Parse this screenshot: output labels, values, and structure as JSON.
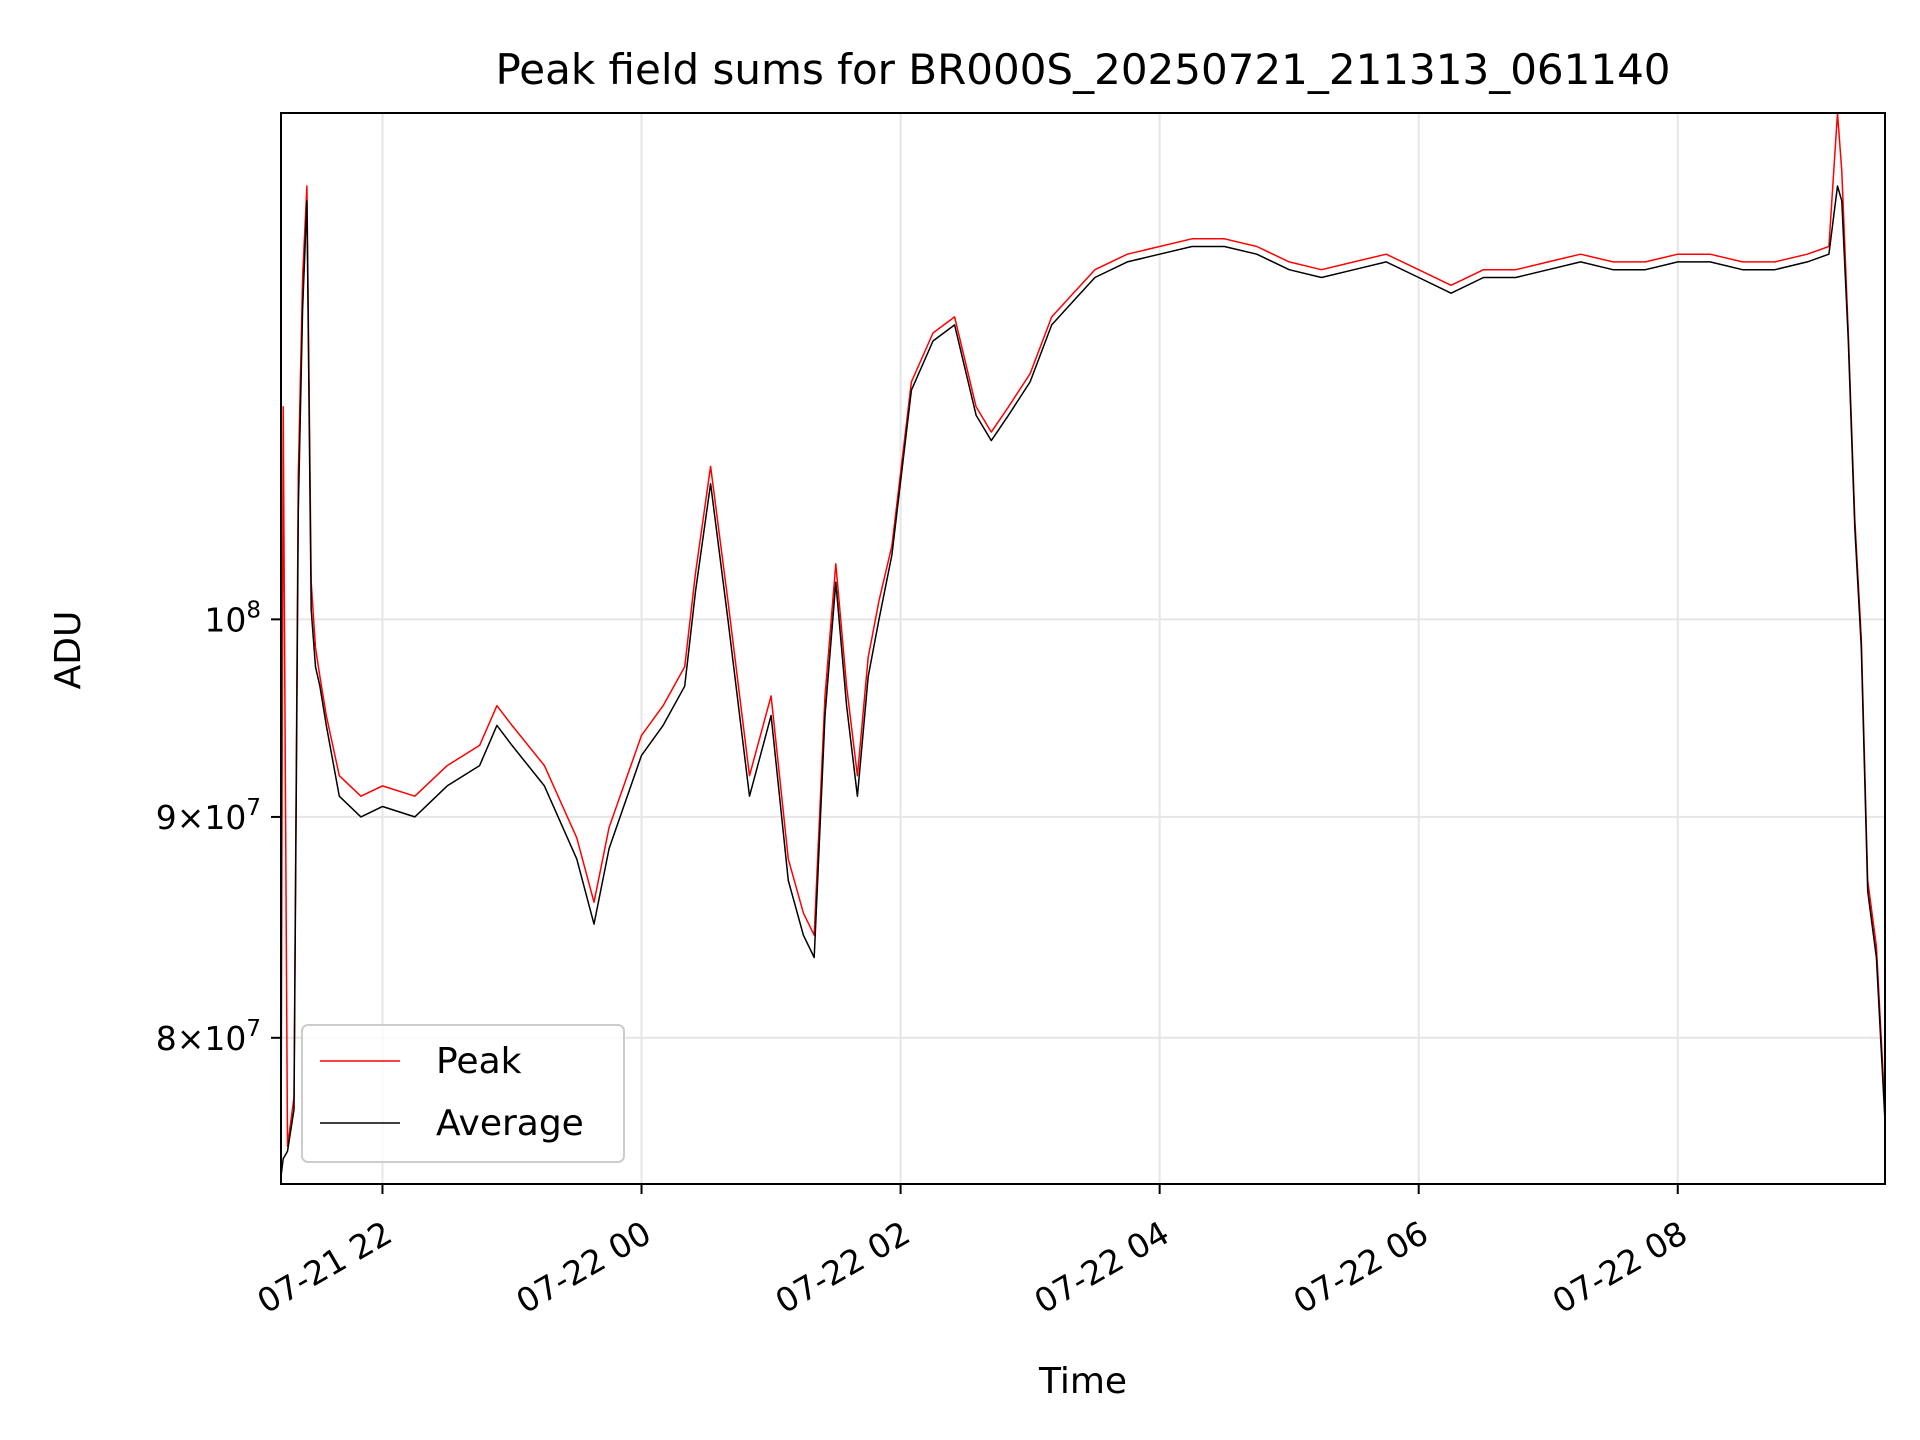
{
  "chart_data": {
    "type": "line",
    "title": "Peak field sums for BR000S_20250721_211313_061140",
    "xlabel": "Time",
    "ylabel": "ADU",
    "yscale": "log",
    "ylim": [
      74000000,
      131000000
    ],
    "xlim": [
      "2025-07-21 21:13",
      "2025-07-22 09:36"
    ],
    "grid": true,
    "legend_position": "lower-left",
    "x_ticks": [
      "07-21 22",
      "07-22 00",
      "07-22 02",
      "07-22 04",
      "07-22 06",
      "07-22 08"
    ],
    "y_ticks": [
      {
        "value": 80000000,
        "mantissa": "8",
        "exponent": "7"
      },
      {
        "value": 90000000,
        "mantissa": "9",
        "exponent": "7"
      },
      {
        "value": 100000000,
        "mantissa": "10",
        "exponent": "8"
      }
    ],
    "tick_times_of_day": [
      "2025-07-21 22:00",
      "2025-07-22 00:00",
      "2025-07-22 02:00",
      "2025-07-22 04:00",
      "2025-07-22 06:00",
      "2025-07-22 08:00"
    ],
    "series": [
      {
        "name": "Peak",
        "color": "#ff0000",
        "x": [
          "2025-07-21 21:13",
          "2025-07-21 21:14",
          "2025-07-21 21:16",
          "2025-07-21 21:19",
          "2025-07-21 21:21",
          "2025-07-21 21:23",
          "2025-07-21 21:25",
          "2025-07-21 21:27",
          "2025-07-21 21:29",
          "2025-07-21 21:31",
          "2025-07-21 21:34",
          "2025-07-21 21:40",
          "2025-07-21 21:50",
          "2025-07-21 22:00",
          "2025-07-21 22:15",
          "2025-07-21 22:30",
          "2025-07-21 22:45",
          "2025-07-21 22:53",
          "2025-07-21 23:00",
          "2025-07-21 23:15",
          "2025-07-21 23:30",
          "2025-07-21 23:38",
          "2025-07-21 23:45",
          "2025-07-22 00:00",
          "2025-07-22 00:10",
          "2025-07-22 00:20",
          "2025-07-22 00:25",
          "2025-07-22 00:32",
          "2025-07-22 00:40",
          "2025-07-22 00:50",
          "2025-07-22 01:00",
          "2025-07-22 01:08",
          "2025-07-22 01:15",
          "2025-07-22 01:20",
          "2025-07-22 01:25",
          "2025-07-22 01:30",
          "2025-07-22 01:35",
          "2025-07-22 01:40",
          "2025-07-22 01:45",
          "2025-07-22 01:50",
          "2025-07-22 01:56",
          "2025-07-22 02:05",
          "2025-07-22 02:15",
          "2025-07-22 02:25",
          "2025-07-22 02:35",
          "2025-07-22 02:42",
          "2025-07-22 02:50",
          "2025-07-22 03:00",
          "2025-07-22 03:10",
          "2025-07-22 03:20",
          "2025-07-22 03:30",
          "2025-07-22 03:45",
          "2025-07-22 04:00",
          "2025-07-22 04:15",
          "2025-07-22 04:30",
          "2025-07-22 04:45",
          "2025-07-22 05:00",
          "2025-07-22 05:15",
          "2025-07-22 05:30",
          "2025-07-22 05:45",
          "2025-07-22 06:00",
          "2025-07-22 06:15",
          "2025-07-22 06:30",
          "2025-07-22 06:45",
          "2025-07-22 07:00",
          "2025-07-22 07:15",
          "2025-07-22 07:30",
          "2025-07-22 07:45",
          "2025-07-22 08:00",
          "2025-07-22 08:15",
          "2025-07-22 08:30",
          "2025-07-22 08:45",
          "2025-07-22 09:00",
          "2025-07-22 09:10",
          "2025-07-22 09:14",
          "2025-07-22 09:16",
          "2025-07-22 09:19",
          "2025-07-22 09:22",
          "2025-07-22 09:25",
          "2025-07-22 09:28",
          "2025-07-22 09:32",
          "2025-07-22 09:36"
        ],
        "y": [
          74500000,
          112000000,
          75500000,
          77500000,
          108000000,
          120000000,
          126000000,
          102000000,
          98500000,
          97000000,
          95000000,
          92000000,
          91000000,
          91500000,
          91000000,
          92500000,
          93500000,
          95500000,
          94500000,
          92500000,
          89000000,
          86000000,
          89500000,
          94000000,
          95500000,
          97500000,
          102500000,
          108500000,
          101000000,
          92000000,
          96000000,
          88000000,
          85500000,
          84500000,
          96000000,
          103000000,
          96500000,
          92000000,
          98000000,
          101000000,
          104000000,
          113500000,
          116500000,
          117500000,
          112000000,
          110500000,
          112000000,
          114000000,
          117500000,
          119000000,
          120500000,
          121500000,
          122000000,
          122500000,
          122500000,
          122000000,
          121000000,
          120500000,
          121000000,
          121500000,
          120500000,
          119500000,
          120500000,
          120500000,
          121000000,
          121500000,
          121000000,
          121000000,
          121500000,
          121500000,
          121000000,
          121000000,
          121500000,
          122000000,
          131000000,
          127000000,
          116500000,
          105500000,
          99000000,
          87000000,
          84000000,
          77000000
        ]
      },
      {
        "name": "Average",
        "color": "#000000",
        "x": [
          "2025-07-21 21:13",
          "2025-07-21 21:14",
          "2025-07-21 21:16",
          "2025-07-21 21:19",
          "2025-07-21 21:21",
          "2025-07-21 21:23",
          "2025-07-21 21:25",
          "2025-07-21 21:27",
          "2025-07-21 21:29",
          "2025-07-21 21:31",
          "2025-07-21 21:34",
          "2025-07-21 21:40",
          "2025-07-21 21:50",
          "2025-07-21 22:00",
          "2025-07-21 22:15",
          "2025-07-21 22:30",
          "2025-07-21 22:45",
          "2025-07-21 22:53",
          "2025-07-21 23:00",
          "2025-07-21 23:15",
          "2025-07-21 23:30",
          "2025-07-21 23:38",
          "2025-07-21 23:45",
          "2025-07-22 00:00",
          "2025-07-22 00:10",
          "2025-07-22 00:20",
          "2025-07-22 00:25",
          "2025-07-22 00:32",
          "2025-07-22 00:40",
          "2025-07-22 00:50",
          "2025-07-22 01:00",
          "2025-07-22 01:08",
          "2025-07-22 01:15",
          "2025-07-22 01:20",
          "2025-07-22 01:25",
          "2025-07-22 01:30",
          "2025-07-22 01:35",
          "2025-07-22 01:40",
          "2025-07-22 01:45",
          "2025-07-22 01:50",
          "2025-07-22 01:56",
          "2025-07-22 02:05",
          "2025-07-22 02:15",
          "2025-07-22 02:25",
          "2025-07-22 02:35",
          "2025-07-22 02:42",
          "2025-07-22 02:50",
          "2025-07-22 03:00",
          "2025-07-22 03:10",
          "2025-07-22 03:20",
          "2025-07-22 03:30",
          "2025-07-22 03:45",
          "2025-07-22 04:00",
          "2025-07-22 04:15",
          "2025-07-22 04:30",
          "2025-07-22 04:45",
          "2025-07-22 05:00",
          "2025-07-22 05:15",
          "2025-07-22 05:30",
          "2025-07-22 05:45",
          "2025-07-22 06:00",
          "2025-07-22 06:15",
          "2025-07-22 06:30",
          "2025-07-22 06:45",
          "2025-07-22 07:00",
          "2025-07-22 07:15",
          "2025-07-22 07:30",
          "2025-07-22 07:45",
          "2025-07-22 08:00",
          "2025-07-22 08:15",
          "2025-07-22 08:30",
          "2025-07-22 08:45",
          "2025-07-22 09:00",
          "2025-07-22 09:10",
          "2025-07-22 09:14",
          "2025-07-22 09:16",
          "2025-07-22 09:19",
          "2025-07-22 09:22",
          "2025-07-22 09:25",
          "2025-07-22 09:28",
          "2025-07-22 09:32",
          "2025-07-22 09:36"
        ],
        "y": [
          74300000,
          75000000,
          75300000,
          77000000,
          106000000,
          118000000,
          125000000,
          100500000,
          97500000,
          96500000,
          94500000,
          91000000,
          90000000,
          90500000,
          90000000,
          91500000,
          92500000,
          94500000,
          93500000,
          91500000,
          88000000,
          85000000,
          88500000,
          93000000,
          94500000,
          96500000,
          101500000,
          107500000,
          100000000,
          91000000,
          95000000,
          87000000,
          84500000,
          83500000,
          95000000,
          102000000,
          95500000,
          91000000,
          97000000,
          100000000,
          103500000,
          113000000,
          116000000,
          117000000,
          111500000,
          110000000,
          111500000,
          113500000,
          117000000,
          118500000,
          120000000,
          121000000,
          121500000,
          122000000,
          122000000,
          121500000,
          120500000,
          120000000,
          120500000,
          121000000,
          120000000,
          119000000,
          120000000,
          120000000,
          120500000,
          121000000,
          120500000,
          120500000,
          121000000,
          121000000,
          120500000,
          120500000,
          121000000,
          121500000,
          126000000,
          125000000,
          116000000,
          105000000,
          98500000,
          86500000,
          83500000,
          76500000
        ]
      }
    ]
  }
}
